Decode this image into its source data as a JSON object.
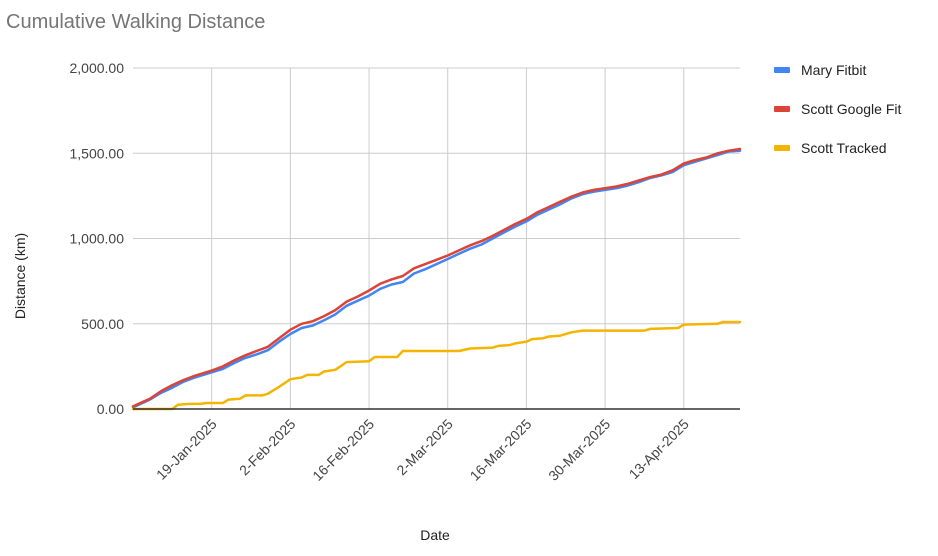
{
  "chart_data": {
    "type": "line",
    "title": "Cumulative Walking Distance",
    "xlabel": "Date",
    "ylabel": "Distance (km)",
    "ylim": [
      0,
      2000
    ],
    "yticks": [
      0,
      500,
      1000,
      1500,
      2000
    ],
    "ytick_labels": [
      "0.00",
      "500.00",
      "1,000.00",
      "1,500.00",
      "2,000.00"
    ],
    "xlim": [
      "2025-01-05",
      "2025-04-23"
    ],
    "xticks": [
      "2025-01-19",
      "2025-02-02",
      "2025-02-16",
      "2025-03-02",
      "2025-03-16",
      "2025-03-30",
      "2025-04-13"
    ],
    "xtick_labels": [
      "19-Jan-2025",
      "2-Feb-2025",
      "16-Feb-2025",
      "2-Mar-2025",
      "16-Mar-2025",
      "30-Mar-2025",
      "13-Apr-2025"
    ],
    "grid": true,
    "legend_position": "right",
    "series": [
      {
        "name": "Mary Fitbit",
        "color": "#4285f4",
        "points": [
          [
            "2025-01-05",
            10
          ],
          [
            "2025-01-07",
            40
          ],
          [
            "2025-01-08",
            55
          ],
          [
            "2025-01-10",
            95
          ],
          [
            "2025-01-12",
            125
          ],
          [
            "2025-01-14",
            160
          ],
          [
            "2025-01-16",
            185
          ],
          [
            "2025-01-19",
            215
          ],
          [
            "2025-01-21",
            235
          ],
          [
            "2025-01-23",
            270
          ],
          [
            "2025-01-25",
            300
          ],
          [
            "2025-01-27",
            320
          ],
          [
            "2025-01-29",
            345
          ],
          [
            "2025-01-31",
            395
          ],
          [
            "2025-02-02",
            440
          ],
          [
            "2025-02-04",
            475
          ],
          [
            "2025-02-06",
            490
          ],
          [
            "2025-02-08",
            520
          ],
          [
            "2025-02-10",
            555
          ],
          [
            "2025-02-12",
            605
          ],
          [
            "2025-02-14",
            635
          ],
          [
            "2025-02-16",
            665
          ],
          [
            "2025-02-18",
            705
          ],
          [
            "2025-02-20",
            730
          ],
          [
            "2025-02-22",
            745
          ],
          [
            "2025-02-24",
            795
          ],
          [
            "2025-02-26",
            820
          ],
          [
            "2025-02-28",
            850
          ],
          [
            "2025-03-02",
            880
          ],
          [
            "2025-03-04",
            910
          ],
          [
            "2025-03-06",
            940
          ],
          [
            "2025-03-08",
            965
          ],
          [
            "2025-03-10",
            1000
          ],
          [
            "2025-03-12",
            1035
          ],
          [
            "2025-03-14",
            1070
          ],
          [
            "2025-03-16",
            1100
          ],
          [
            "2025-03-18",
            1140
          ],
          [
            "2025-03-20",
            1170
          ],
          [
            "2025-03-22",
            1200
          ],
          [
            "2025-03-24",
            1235
          ],
          [
            "2025-03-26",
            1260
          ],
          [
            "2025-03-28",
            1275
          ],
          [
            "2025-03-30",
            1285
          ],
          [
            "2025-04-01",
            1295
          ],
          [
            "2025-04-03",
            1310
          ],
          [
            "2025-04-05",
            1330
          ],
          [
            "2025-04-07",
            1355
          ],
          [
            "2025-04-09",
            1370
          ],
          [
            "2025-04-11",
            1390
          ],
          [
            "2025-04-13",
            1430
          ],
          [
            "2025-04-15",
            1450
          ],
          [
            "2025-04-17",
            1470
          ],
          [
            "2025-04-19",
            1490
          ],
          [
            "2025-04-21",
            1510
          ],
          [
            "2025-04-23",
            1515
          ]
        ]
      },
      {
        "name": "Scott Google Fit",
        "color": "#db4437",
        "points": [
          [
            "2025-01-05",
            15
          ],
          [
            "2025-01-07",
            45
          ],
          [
            "2025-01-08",
            60
          ],
          [
            "2025-01-10",
            105
          ],
          [
            "2025-01-12",
            140
          ],
          [
            "2025-01-14",
            170
          ],
          [
            "2025-01-16",
            195
          ],
          [
            "2025-01-19",
            225
          ],
          [
            "2025-01-21",
            250
          ],
          [
            "2025-01-23",
            285
          ],
          [
            "2025-01-25",
            315
          ],
          [
            "2025-01-27",
            340
          ],
          [
            "2025-01-29",
            365
          ],
          [
            "2025-01-31",
            415
          ],
          [
            "2025-02-02",
            465
          ],
          [
            "2025-02-04",
            500
          ],
          [
            "2025-02-06",
            515
          ],
          [
            "2025-02-08",
            545
          ],
          [
            "2025-02-10",
            580
          ],
          [
            "2025-02-12",
            630
          ],
          [
            "2025-02-14",
            660
          ],
          [
            "2025-02-16",
            695
          ],
          [
            "2025-02-18",
            735
          ],
          [
            "2025-02-20",
            760
          ],
          [
            "2025-02-22",
            780
          ],
          [
            "2025-02-24",
            825
          ],
          [
            "2025-02-26",
            850
          ],
          [
            "2025-02-28",
            875
          ],
          [
            "2025-03-02",
            900
          ],
          [
            "2025-03-04",
            930
          ],
          [
            "2025-03-06",
            960
          ],
          [
            "2025-03-08",
            985
          ],
          [
            "2025-03-10",
            1015
          ],
          [
            "2025-03-12",
            1050
          ],
          [
            "2025-03-14",
            1085
          ],
          [
            "2025-03-16",
            1115
          ],
          [
            "2025-03-18",
            1155
          ],
          [
            "2025-03-20",
            1185
          ],
          [
            "2025-03-22",
            1215
          ],
          [
            "2025-03-24",
            1245
          ],
          [
            "2025-03-26",
            1270
          ],
          [
            "2025-03-28",
            1285
          ],
          [
            "2025-03-30",
            1295
          ],
          [
            "2025-04-01",
            1305
          ],
          [
            "2025-04-03",
            1320
          ],
          [
            "2025-04-05",
            1340
          ],
          [
            "2025-04-07",
            1360
          ],
          [
            "2025-04-09",
            1375
          ],
          [
            "2025-04-11",
            1400
          ],
          [
            "2025-04-13",
            1440
          ],
          [
            "2025-04-15",
            1460
          ],
          [
            "2025-04-17",
            1475
          ],
          [
            "2025-04-19",
            1500
          ],
          [
            "2025-04-21",
            1515
          ],
          [
            "2025-04-23",
            1525
          ]
        ]
      },
      {
        "name": "Scott Tracked",
        "color": "#f4b400",
        "points": [
          [
            "2025-01-05",
            0
          ],
          [
            "2025-01-12",
            0
          ],
          [
            "2025-01-13",
            25
          ],
          [
            "2025-01-15",
            30
          ],
          [
            "2025-01-17",
            30
          ],
          [
            "2025-01-18",
            35
          ],
          [
            "2025-01-21",
            35
          ],
          [
            "2025-01-22",
            55
          ],
          [
            "2025-01-24",
            60
          ],
          [
            "2025-01-25",
            80
          ],
          [
            "2025-01-28",
            80
          ],
          [
            "2025-01-29",
            90
          ],
          [
            "2025-01-31",
            130
          ],
          [
            "2025-02-02",
            175
          ],
          [
            "2025-02-04",
            185
          ],
          [
            "2025-02-05",
            200
          ],
          [
            "2025-02-07",
            200
          ],
          [
            "2025-02-08",
            220
          ],
          [
            "2025-02-10",
            230
          ],
          [
            "2025-02-12",
            275
          ],
          [
            "2025-02-16",
            280
          ],
          [
            "2025-02-17",
            305
          ],
          [
            "2025-02-21",
            305
          ],
          [
            "2025-02-22",
            340
          ],
          [
            "2025-03-04",
            340
          ],
          [
            "2025-03-06",
            355
          ],
          [
            "2025-03-10",
            360
          ],
          [
            "2025-03-11",
            370
          ],
          [
            "2025-03-13",
            375
          ],
          [
            "2025-03-14",
            385
          ],
          [
            "2025-03-16",
            395
          ],
          [
            "2025-03-17",
            410
          ],
          [
            "2025-03-19",
            415
          ],
          [
            "2025-03-20",
            425
          ],
          [
            "2025-03-22",
            430
          ],
          [
            "2025-03-24",
            450
          ],
          [
            "2025-03-26",
            460
          ],
          [
            "2025-04-06",
            460
          ],
          [
            "2025-04-07",
            470
          ],
          [
            "2025-04-12",
            475
          ],
          [
            "2025-04-13",
            495
          ],
          [
            "2025-04-19",
            500
          ],
          [
            "2025-04-20",
            510
          ],
          [
            "2025-04-23",
            510
          ]
        ]
      }
    ]
  }
}
